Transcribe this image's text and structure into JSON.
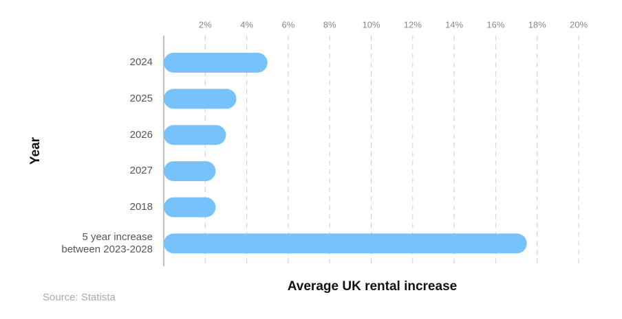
{
  "chart_data": {
    "type": "bar",
    "orientation": "horizontal",
    "x_label": "Average UK rental increase",
    "y_label": "Year",
    "source": "Source: Statista",
    "categories": [
      "2024",
      "2025",
      "2026",
      "2027",
      "2018",
      "5 year increase between 2023-2028"
    ],
    "values": [
      5,
      3.5,
      3,
      2.5,
      2.5,
      17.5
    ],
    "color": "#78c2fc",
    "xlim": [
      0,
      20
    ],
    "xticks": [
      {
        "value": 2,
        "label": "2%"
      },
      {
        "value": 4,
        "label": "4%"
      },
      {
        "value": 6,
        "label": "6%"
      },
      {
        "value": 8,
        "label": "8%"
      },
      {
        "value": 10,
        "label": "10%"
      },
      {
        "value": 12,
        "label": "12%"
      },
      {
        "value": 14,
        "label": "14%"
      },
      {
        "value": 16,
        "label": "16%"
      },
      {
        "value": 18,
        "label": "18%"
      },
      {
        "value": 20,
        "label": "20%"
      }
    ],
    "grid": true
  }
}
